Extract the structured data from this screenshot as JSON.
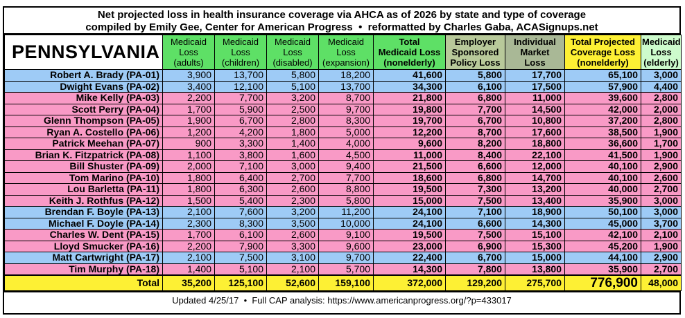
{
  "title": {
    "line1": "Net projected loss in health insurance coverage via AHCA as of 2026 by state and type of coverage",
    "line2": "compiled by Emily Gee, Center for American Progress  •  reformatted by Charles Gaba, ACASignups.net"
  },
  "state": "PENNSYLVANIA",
  "colors": {
    "democrat_row": "#9ecbf6",
    "republican_row": "#f99ac6",
    "medicaid_header": "#5ee066",
    "employer_header": "#b8c99a",
    "individual_header": "#a9b896",
    "total_header": "#fdf034",
    "elderly_header": "#cdfbcc",
    "total_row": "#fdf034"
  },
  "columns": [
    {
      "l1": "Medicaid",
      "l2": "Loss",
      "l3": "(adults)"
    },
    {
      "l1": "Medicaid",
      "l2": "Loss",
      "l3": "(children)"
    },
    {
      "l1": "Medicaid",
      "l2": "Loss",
      "l3": "(disabled)"
    },
    {
      "l1": "Medicaid",
      "l2": "Loss",
      "l3": "(expansion)"
    },
    {
      "l1": "Total",
      "l2": "Medicaid Loss",
      "l3": "(nonelderly)"
    },
    {
      "l1": "Employer",
      "l2": "Sponsored",
      "l3": "Policy Loss"
    },
    {
      "l1": "Individual",
      "l2": "Market",
      "l3": "Loss"
    },
    {
      "l1": "Total Projected",
      "l2": "Coverage Loss",
      "l3": "(nonelderly)"
    },
    {
      "l1": "Medicaid",
      "l2": "Loss",
      "l3": "(elderly)"
    }
  ],
  "rows": [
    {
      "party": "D",
      "name": "Robert A. Brady (PA-01)",
      "v": [
        "3,900",
        "13,700",
        "5,800",
        "18,200",
        "41,600",
        "5,800",
        "17,700",
        "65,100",
        "3,000"
      ]
    },
    {
      "party": "D",
      "name": "Dwight Evans (PA-02)",
      "v": [
        "3,400",
        "12,100",
        "5,100",
        "13,700",
        "34,300",
        "6,100",
        "17,500",
        "57,900",
        "4,400"
      ]
    },
    {
      "party": "R",
      "name": "Mike Kelly (PA-03)",
      "v": [
        "2,200",
        "7,700",
        "3,200",
        "8,700",
        "21,800",
        "6,800",
        "11,000",
        "39,600",
        "2,800"
      ]
    },
    {
      "party": "R",
      "name": "Scott Perry (PA-04)",
      "v": [
        "1,700",
        "5,900",
        "2,500",
        "9,700",
        "19,800",
        "7,700",
        "14,500",
        "42,000",
        "2,000"
      ]
    },
    {
      "party": "R",
      "name": "Glenn Thompson (PA-05)",
      "v": [
        "1,900",
        "6,700",
        "2,800",
        "8,300",
        "19,700",
        "6,700",
        "10,800",
        "37,200",
        "2,800"
      ]
    },
    {
      "party": "R",
      "name": "Ryan A. Costello (PA-06)",
      "v": [
        "1,200",
        "4,200",
        "1,800",
        "5,000",
        "12,200",
        "8,700",
        "17,600",
        "38,500",
        "1,900"
      ]
    },
    {
      "party": "R",
      "name": "Patrick Meehan (PA-07)",
      "v": [
        "900",
        "3,300",
        "1,400",
        "4,000",
        "9,600",
        "8,200",
        "18,800",
        "36,600",
        "1,700"
      ]
    },
    {
      "party": "R",
      "name": "Brian K. Fitzpatrick (PA-08)",
      "v": [
        "1,100",
        "3,800",
        "1,600",
        "4,500",
        "11,000",
        "8,400",
        "22,100",
        "41,500",
        "1,900"
      ]
    },
    {
      "party": "R",
      "name": "Bill Shuster (PA-09)",
      "v": [
        "2,000",
        "7,100",
        "3,000",
        "9,400",
        "21,500",
        "6,600",
        "12,000",
        "40,100",
        "2,900"
      ]
    },
    {
      "party": "R",
      "name": "Tom Marino (PA-10)",
      "v": [
        "1,800",
        "6,400",
        "2,700",
        "7,700",
        "18,600",
        "6,800",
        "14,700",
        "40,100",
        "2,600"
      ]
    },
    {
      "party": "R",
      "name": "Lou Barletta (PA-11)",
      "v": [
        "1,800",
        "6,300",
        "2,600",
        "8,800",
        "19,500",
        "7,300",
        "13,200",
        "40,000",
        "2,700"
      ]
    },
    {
      "party": "R",
      "name": "Keith J. Rothfus (PA-12)",
      "v": [
        "1,500",
        "5,400",
        "2,300",
        "5,800",
        "15,000",
        "7,500",
        "13,400",
        "35,900",
        "3,000"
      ]
    },
    {
      "party": "D",
      "name": "Brendan F. Boyle (PA-13)",
      "v": [
        "2,100",
        "7,600",
        "3,200",
        "11,200",
        "24,100",
        "7,100",
        "18,900",
        "50,100",
        "3,000"
      ]
    },
    {
      "party": "D",
      "name": "Michael F. Doyle (PA-14)",
      "v": [
        "2,300",
        "8,300",
        "3,500",
        "10,000",
        "24,100",
        "6,600",
        "14,300",
        "45,000",
        "3,700"
      ]
    },
    {
      "party": "R",
      "name": "Charles W. Dent (PA-15)",
      "v": [
        "1,700",
        "6,100",
        "2,600",
        "9,100",
        "19,500",
        "7,500",
        "15,100",
        "42,100",
        "2,100"
      ]
    },
    {
      "party": "R",
      "name": "Lloyd Smucker (PA-16)",
      "v": [
        "2,200",
        "7,900",
        "3,300",
        "9,600",
        "23,000",
        "6,900",
        "15,300",
        "45,200",
        "1,900"
      ]
    },
    {
      "party": "D",
      "name": "Matt Cartwright (PA-17)",
      "v": [
        "2,100",
        "7,500",
        "3,100",
        "9,700",
        "22,400",
        "6,700",
        "15,000",
        "44,100",
        "2,900"
      ]
    },
    {
      "party": "R",
      "name": "Tim Murphy (PA-18)",
      "v": [
        "1,400",
        "5,100",
        "2,100",
        "5,700",
        "14,300",
        "7,800",
        "13,800",
        "35,900",
        "2,700"
      ]
    }
  ],
  "total": {
    "label": "Total",
    "v": [
      "35,200",
      "125,100",
      "52,600",
      "159,100",
      "372,000",
      "129,200",
      "275,700",
      "776,900",
      "48,000"
    ]
  },
  "footer": "Updated 4/25/17  •  Full CAP analysis: https://www.americanprogress.org/?p=433017"
}
